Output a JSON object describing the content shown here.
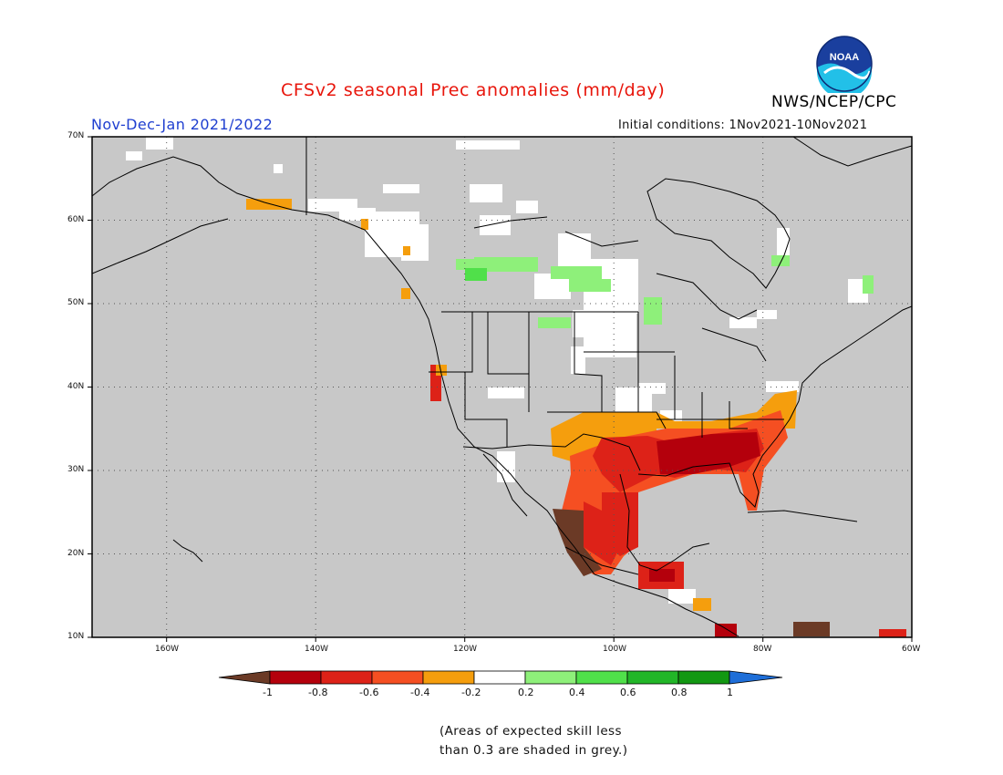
{
  "header": {
    "title": "CFSv2 seasonal Prec anomalies (mm/day)",
    "agency": "NWS/NCEP/CPC",
    "season": "Nov-Dec-Jan 2021/2022",
    "initial_conditions": "Initial conditions: 1Nov2021-10Nov2021",
    "logo_text": "NOAA"
  },
  "map": {
    "projection": "equirectangular",
    "lon_range": [
      -170,
      -60
    ],
    "lat_range": [
      10,
      70
    ],
    "grid": true,
    "lat_labels": [
      "70N",
      "60N",
      "50N",
      "40N",
      "30N",
      "20N",
      "10N"
    ],
    "lon_labels": [
      "160W",
      "140W",
      "120W",
      "100W",
      "80W",
      "60W"
    ],
    "background_grey": "#c8c8c8",
    "regions": [
      {
        "name": "Southeast US",
        "anomaly": "-0.8 to -0.6"
      },
      {
        "name": "Gulf Coast / Texas",
        "anomaly": "-0.6 to -0.4"
      },
      {
        "name": "Southwest US",
        "anomaly": "-0.4 to -0.2"
      },
      {
        "name": "Western Mexico",
        "anomaly": "-1 to -0.8"
      },
      {
        "name": "Canadian Prairies",
        "anomaly": "0.2 to 0.4"
      }
    ]
  },
  "colorbar": {
    "labels": [
      "-1",
      "-0.8",
      "-0.6",
      "-0.4",
      "-0.2",
      "0.2",
      "0.4",
      "0.6",
      "0.8",
      "1"
    ],
    "colors": [
      "#6b3a26",
      "#b4000c",
      "#dd2218",
      "#f54f22",
      "#f59e0d",
      "#ffffff",
      "#8ef07a",
      "#50e04a",
      "#22b628",
      "#129812",
      "#1e6ed8"
    ]
  },
  "footnote": {
    "line1": "(Areas of expected skill less",
    "line2": "than 0.3 are shaded in grey.)"
  }
}
